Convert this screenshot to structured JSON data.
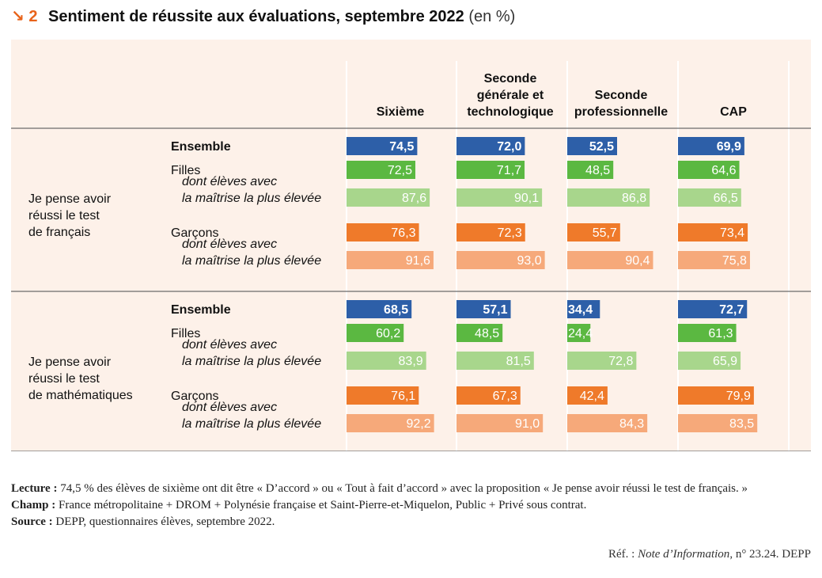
{
  "figure": {
    "arrow": "↘",
    "number": "2",
    "title": "Sentiment de réussite aux évaluations, septembre 2022",
    "unit": "(en %)"
  },
  "chart_data": {
    "type": "bar",
    "title": "Sentiment de réussite aux évaluations, septembre 2022",
    "unit": "%",
    "xlim": [
      0,
      100
    ],
    "columns": [
      "Sixième",
      "Seconde générale et technologique",
      "Seconde professionnelle",
      "CAP"
    ],
    "column_lines": [
      [
        "Sixième"
      ],
      [
        "Seconde",
        "générale et",
        "technologique"
      ],
      [
        "Seconde",
        "professionnelle"
      ],
      [
        "CAP"
      ]
    ],
    "row_labels": [
      {
        "id": "ensemble",
        "lines": [
          "Ensemble"
        ],
        "style": "bold"
      },
      {
        "id": "filles",
        "lines": [
          "Filles"
        ],
        "style": "normal"
      },
      {
        "id": "filles_max",
        "lines": [
          "dont élèves avec",
          "la maîtrise la plus élevée"
        ],
        "style": "italic"
      },
      {
        "id": "garcons",
        "lines": [
          "Garçons"
        ],
        "style": "normal"
      },
      {
        "id": "garcons_max",
        "lines": [
          "dont élèves avec",
          "la maîtrise la plus élevée"
        ],
        "style": "italic"
      }
    ],
    "colors": {
      "ensemble": "#2d5fa8",
      "filles": "#5bb841",
      "filles_max": "#a8d68c",
      "garcons": "#ef7a2a",
      "garcons_max": "#f6a97a"
    },
    "groups": [
      {
        "name": "Je pense avoir réussi le test de français",
        "lines": [
          "Je pense avoir",
          "réussi le test",
          "de français"
        ],
        "values": {
          "ensemble": [
            "74,5",
            "72,0",
            "52,5",
            "69,9"
          ],
          "filles": [
            "72,5",
            "71,7",
            "48,5",
            "64,6"
          ],
          "filles_max": [
            "87,6",
            "90,1",
            "86,8",
            "66,5"
          ],
          "garcons": [
            "76,3",
            "72,3",
            "55,7",
            "73,4"
          ],
          "garcons_max": [
            "91,6",
            "93,0",
            "90,4",
            "75,8"
          ]
        }
      },
      {
        "name": "Je pense avoir réussi le test de mathématiques",
        "lines": [
          "Je pense avoir",
          "réussi le test",
          "de mathématiques"
        ],
        "values": {
          "ensemble": [
            "68,5",
            "57,1",
            "34,4",
            "72,7"
          ],
          "filles": [
            "60,2",
            "48,5",
            "24,4",
            "61,3"
          ],
          "filles_max": [
            "83,9",
            "81,5",
            "72,8",
            "65,9"
          ],
          "garcons": [
            "76,1",
            "67,3",
            "42,4",
            "79,9"
          ],
          "garcons_max": [
            "92,2",
            "91,0",
            "84,3",
            "83,5"
          ]
        }
      }
    ]
  },
  "notes": {
    "lecture_label": "Lecture :",
    "lecture_text": "74,5 % des élèves de sixième ont dit être « D’accord » ou « Tout à fait d’accord » avec la proposition « Je pense avoir réussi le test de français. »",
    "champ_label": "Champ :",
    "champ_text": "France métropolitaine + DROM + Polynésie française et Saint-Pierre-et-Miquelon, Public + Privé sous contrat.",
    "source_label": "Source :",
    "source_text": "DEPP, questionnaires élèves, septembre 2022."
  },
  "reference": {
    "prefix": "Réf. :",
    "publication": "Note d’Information",
    "suffix": ", n° 23.24. DEPP"
  }
}
